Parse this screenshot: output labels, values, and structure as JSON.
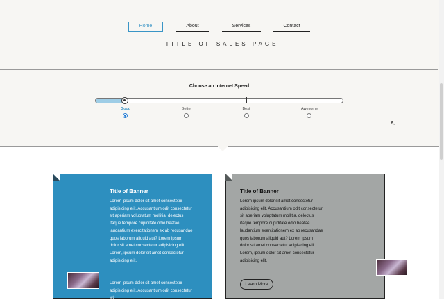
{
  "nav": {
    "items": [
      {
        "label": "Home",
        "active": true
      },
      {
        "label": "About",
        "active": false
      },
      {
        "label": "Services",
        "active": false
      },
      {
        "label": "Contact",
        "active": false
      }
    ]
  },
  "page_title": "TITLE OF SALES PAGE",
  "speed": {
    "heading": "Choose an Internet Speed",
    "selected_index": 0,
    "options": [
      "Good",
      "Better",
      "Best",
      "Awesome"
    ]
  },
  "banners": [
    {
      "title": "Title of Banner",
      "text": "Lorem ipsum dolor sit amet consectetur adipisicing elit. Accusantium odit consectetur sit aperiam voluptatum mollitia, delectus itaque tempore cupiditate odio beatae laudantium exercitationem ex ab recusandae quos laborum aliquid aut? Lorem ipsum dolor sit amet consectetur adipisicing elit. Lorem, ipsum dolor sit amet consectetur adipisicing elit.",
      "text_more": "Lorem ipsum dolor sit amet consectetur adipisicing elit. Accusantium odit consectetur sit",
      "color": "#2d8fbf"
    },
    {
      "title": "Title of Banner",
      "text": "Lorem ipsum dolor sit amet consectetur adipisicing elit. Accusantium odit consectetur sit aperiam voluptatum mollitia, delectus itaque tempore cupiditate odio beatae laudantium exercitationem ex ab recusandae quos laborum aliquid aut? Lorem ipsum dolor sit amet consectetur adipisicing elit. Lorem, ipsum dolor sit amet consectetur adipisicing elit.",
      "button_label": "Learn More",
      "color": "#a3a6a5"
    }
  ],
  "colors": {
    "accent": "#3a95c6",
    "header_bg": "#f7f6f3"
  }
}
